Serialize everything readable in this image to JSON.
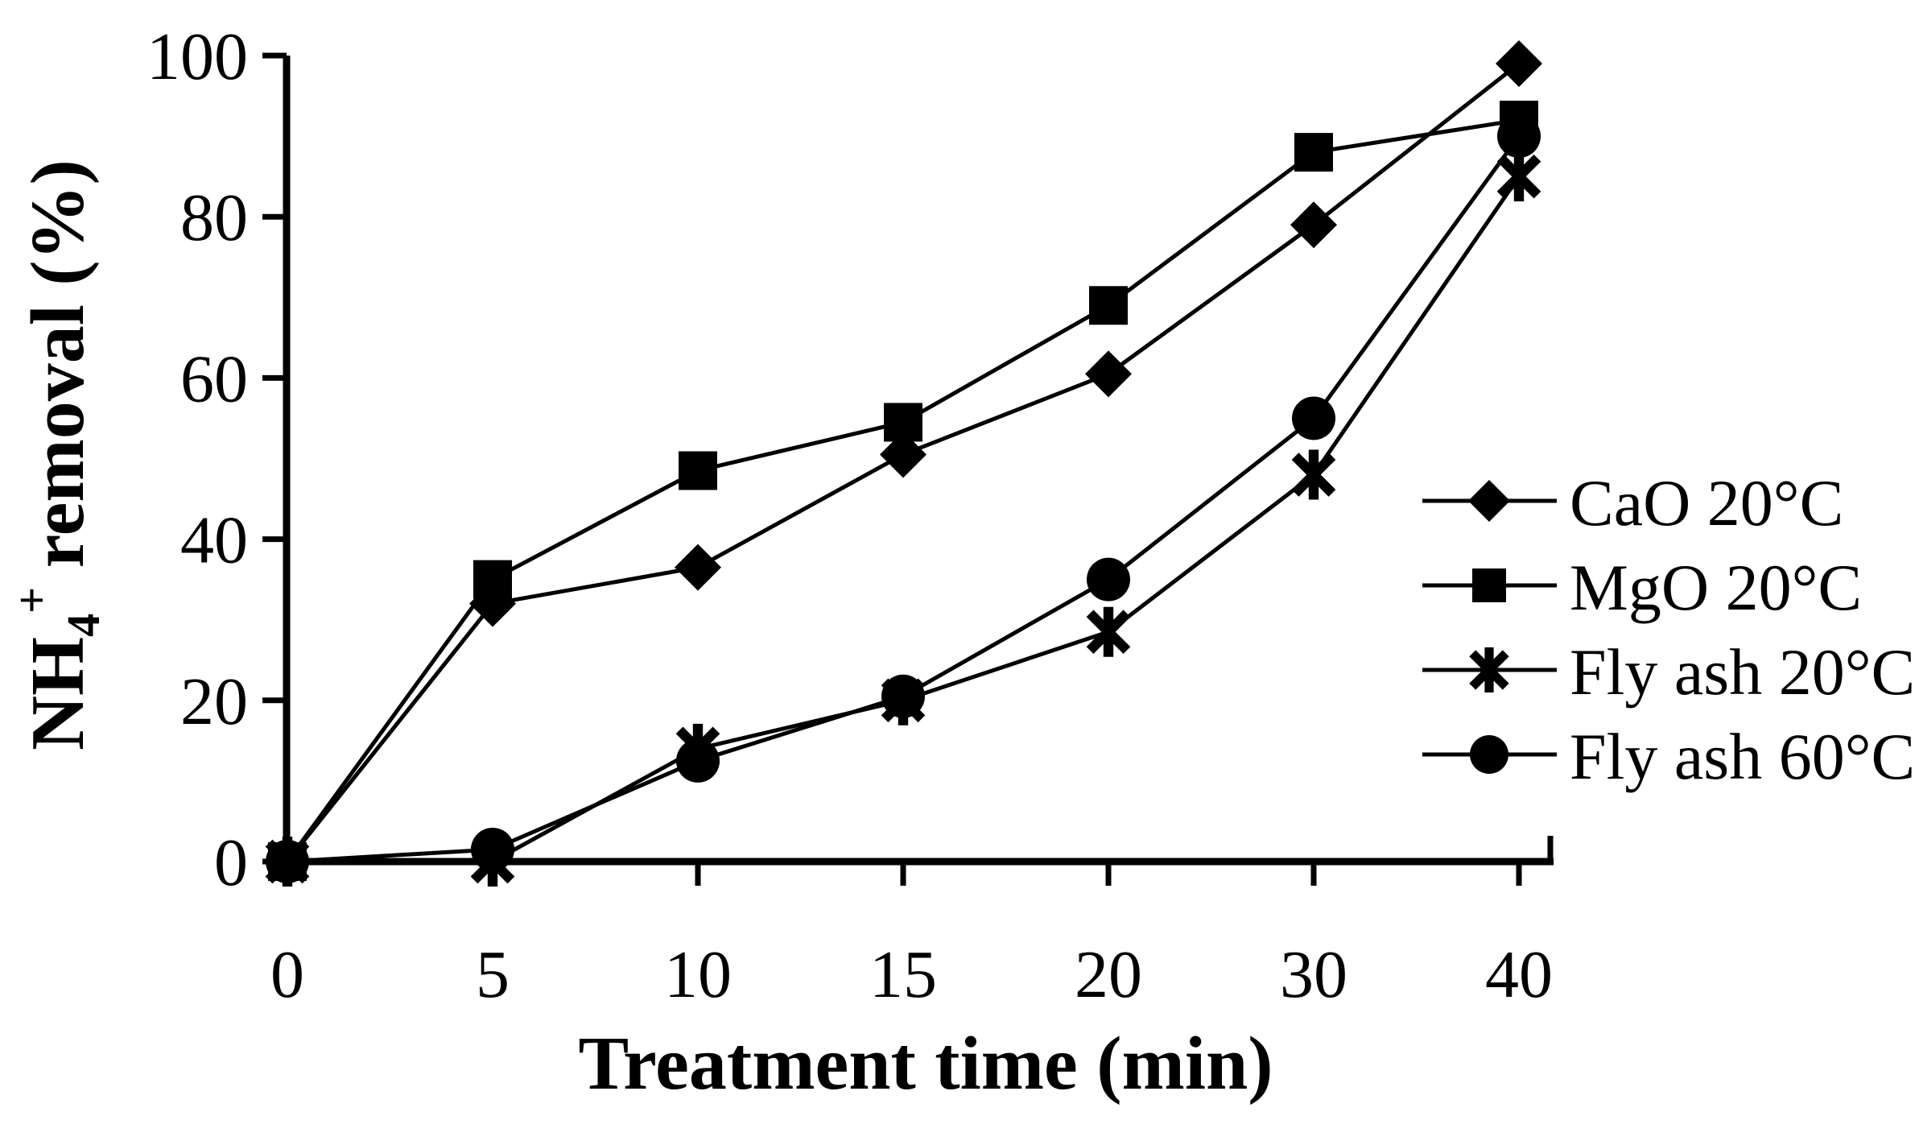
{
  "figure": {
    "background": "#ffffff",
    "ink": "#000000"
  },
  "chart_data": {
    "type": "line",
    "title": "",
    "xlabel": "Treatment time (min)",
    "ylabel": "NH4+ removal (%)",
    "ylabel_parts": {
      "base": "NH",
      "sub": "4",
      "sup": "+",
      "rest": " removal (%)"
    },
    "x_axis_type": "categorical-evenly-spaced",
    "x_values": [
      0,
      5,
      10,
      15,
      20,
      30,
      40
    ],
    "x_tick_labels": [
      "0",
      "5",
      "10",
      "15",
      "20",
      "30",
      "40"
    ],
    "y_ticks": [
      0,
      20,
      40,
      60,
      80,
      100
    ],
    "ylim": [
      0,
      100
    ],
    "grid": false,
    "legend_position": "right-middle",
    "series": [
      {
        "name": "CaO 20°C",
        "marker": "diamond",
        "color": "#000000",
        "values": [
          0,
          32,
          36.5,
          50.5,
          60.5,
          79,
          99
        ]
      },
      {
        "name": "MgO 20°C",
        "marker": "square",
        "color": "#000000",
        "values": [
          0,
          35,
          48.5,
          54.5,
          69,
          88,
          92
        ]
      },
      {
        "name": "Fly ash 20°C",
        "marker": "asterisk",
        "color": "#000000",
        "values": [
          0,
          0,
          14,
          20,
          28.5,
          48,
          85
        ]
      },
      {
        "name": "Fly ash 60°C",
        "marker": "circle",
        "color": "#000000",
        "values": [
          0,
          1.5,
          12.5,
          20.5,
          35,
          55,
          90
        ]
      }
    ]
  }
}
